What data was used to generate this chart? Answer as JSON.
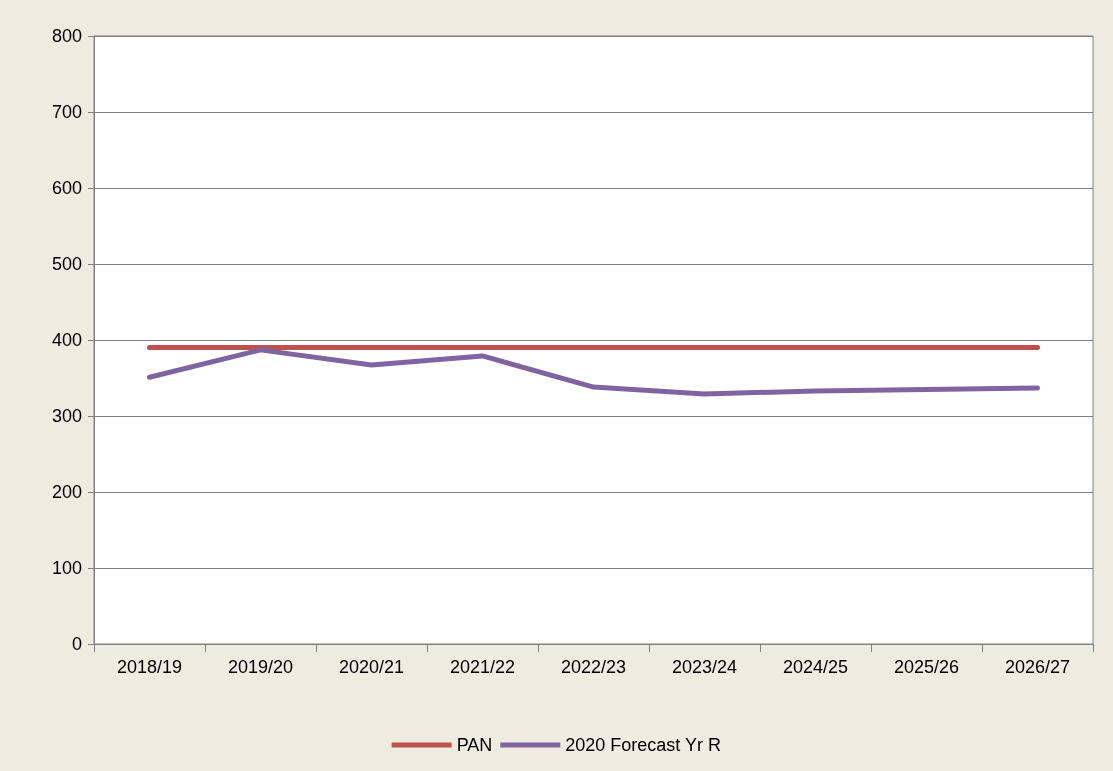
{
  "chart_data": {
    "type": "line",
    "categories": [
      "2018/19",
      "2019/20",
      "2020/21",
      "2021/22",
      "2022/23",
      "2023/24",
      "2024/25",
      "2025/26",
      "2026/27"
    ],
    "series": [
      {
        "name": "PAN",
        "color": "#c0504d",
        "values": [
          390,
          390,
          390,
          390,
          390,
          390,
          390,
          390,
          390
        ]
      },
      {
        "name": "2020 Forecast Yr R",
        "color": "#8064a2",
        "values": [
          351,
          387,
          367,
          379,
          338,
          329,
          333,
          335,
          337
        ]
      }
    ],
    "ylim": [
      0,
      800
    ],
    "yticks": [
      0,
      100,
      200,
      300,
      400,
      500,
      600,
      700,
      800
    ],
    "grid": "y",
    "legend": "bottom",
    "marker": "none",
    "line_style": "solid"
  }
}
